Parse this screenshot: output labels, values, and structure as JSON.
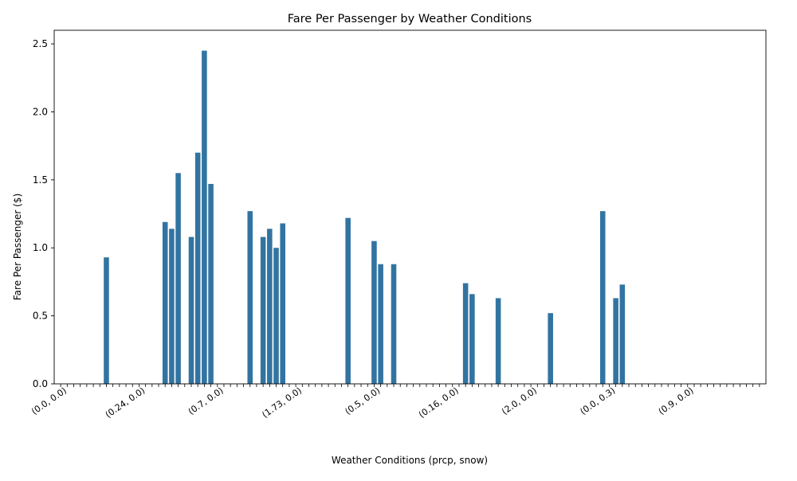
{
  "chart_data": {
    "type": "bar",
    "title": "Fare Per Passenger by Weather Conditions",
    "xlabel": "Weather Conditions (prcp, snow)",
    "ylabel": "Fare Per Passenger ($)",
    "ylim": [
      0,
      2.6
    ],
    "yticks": [
      "0.0",
      "0.5",
      "1.0",
      "1.5",
      "2.0",
      "2.5"
    ],
    "grid": false,
    "legend": "none",
    "bar_color": "#3274a1",
    "category_count": 108,
    "tick_labels_note": "x tick labels are overlapping (prcp, snow) tuples and are largely illegible; legible fragments transcribed below",
    "x_tick_labels_visible": [
      "(0.0, 0.0)",
      "(0.24, 0.0)",
      "(0.7, 0.0)",
      "(1.73, 0.0)",
      "(0.5, 0.0)",
      "(0.16, 0.0)",
      "(2.0, 0.0)",
      "(0.0, 0.3)",
      "(0.9, 0.0)"
    ],
    "nonzero_bars": [
      {
        "index": 7,
        "value": 0.93
      },
      {
        "index": 16,
        "value": 1.19
      },
      {
        "index": 17,
        "value": 1.14
      },
      {
        "index": 18,
        "value": 1.55
      },
      {
        "index": 20,
        "value": 1.08
      },
      {
        "index": 21,
        "value": 1.7
      },
      {
        "index": 22,
        "value": 2.45
      },
      {
        "index": 23,
        "value": 1.47
      },
      {
        "index": 29,
        "value": 1.27
      },
      {
        "index": 31,
        "value": 1.08
      },
      {
        "index": 32,
        "value": 1.14
      },
      {
        "index": 33,
        "value": 1.0
      },
      {
        "index": 34,
        "value": 1.18
      },
      {
        "index": 44,
        "value": 1.22
      },
      {
        "index": 48,
        "value": 1.05
      },
      {
        "index": 49,
        "value": 0.88
      },
      {
        "index": 51,
        "value": 0.88
      },
      {
        "index": 62,
        "value": 0.74
      },
      {
        "index": 63,
        "value": 0.66
      },
      {
        "index": 67,
        "value": 0.63
      },
      {
        "index": 75,
        "value": 0.52
      },
      {
        "index": 83,
        "value": 1.27
      },
      {
        "index": 85,
        "value": 0.63
      },
      {
        "index": 86,
        "value": 0.73
      }
    ]
  }
}
